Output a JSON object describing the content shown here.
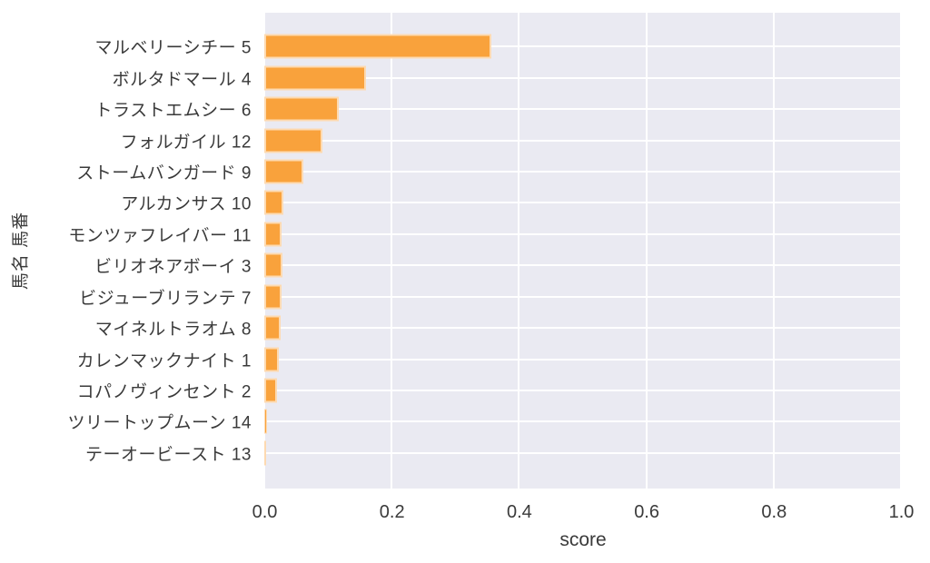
{
  "chart_data": {
    "type": "bar",
    "orientation": "horizontal",
    "title": "",
    "xlabel": "score",
    "ylabel": "馬名 馬番",
    "xlim": [
      0.0,
      1.0
    ],
    "x_ticks": [
      {
        "label": "0.0",
        "value": 0.0
      },
      {
        "label": "0.2",
        "value": 0.2
      },
      {
        "label": "0.4",
        "value": 0.4
      },
      {
        "label": "0.6",
        "value": 0.6
      },
      {
        "label": "0.8",
        "value": 0.8
      },
      {
        "label": "1.0",
        "value": 1.0
      }
    ],
    "categories": [
      "マルベリーシチー 5",
      "ボルタドマール 4",
      "トラストエムシー 6",
      "フォルガイル 12",
      "ストームバンガード 9",
      "アルカンサス 10",
      "モンツァフレイバー 11",
      "ビリオネアボーイ 3",
      "ビジューブリランテ 7",
      "マイネルトラオム 8",
      "カレンマックナイト 1",
      "コパノヴィンセント 2",
      "ツリートップムーン 14",
      "テーオービースト 13"
    ],
    "values": [
      0.357,
      0.16,
      0.117,
      0.091,
      0.061,
      0.03,
      0.027,
      0.028,
      0.027,
      0.026,
      0.023,
      0.02,
      0.004,
      0.002
    ],
    "legend": false,
    "grid": true,
    "colors": {
      "bar": "#F9A23C",
      "bar_edge": "rgba(255,255,255,0.6)",
      "plot_background": "#EAEAF2",
      "grid_line": "#FFFFFF",
      "text": "#3a3a3a",
      "figure_background": "#FFFFFF"
    }
  }
}
